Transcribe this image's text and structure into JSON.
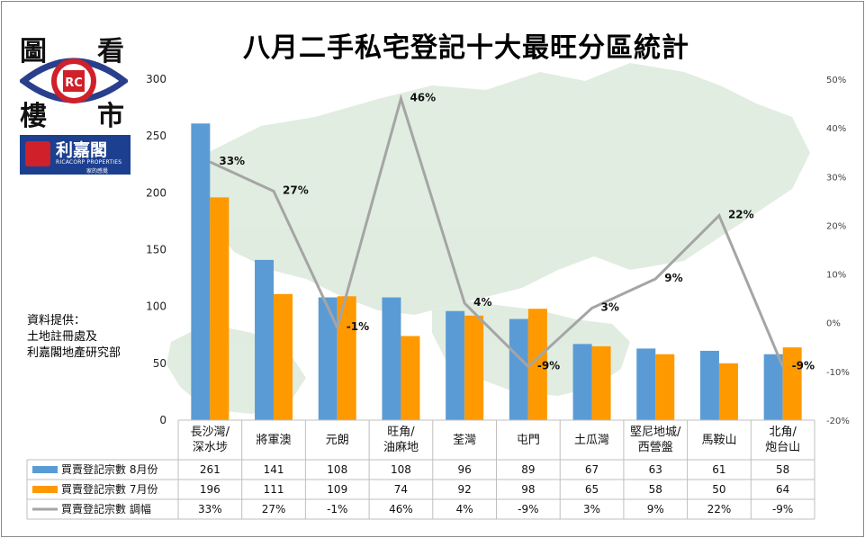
{
  "logo": {
    "chars": [
      "圖",
      "看",
      "樓",
      "市"
    ],
    "emblem_text": "RC"
  },
  "brand": {
    "name": "利嘉閣",
    "sub_en": "RICACORP PROPERTIES",
    "sub_zh": "家的感覺"
  },
  "source_note": {
    "line1": "資料提供：",
    "line2": "土地註冊處及",
    "line3": "利嘉閣地產研究部"
  },
  "colors": {
    "aug": "#5b9bd5",
    "jul": "#ff9900",
    "change": "#a5a5a5",
    "map": "#c9dec9"
  },
  "chart_data": {
    "type": "bar",
    "title": "八月二手私宅登記十大最旺分區統計",
    "categories": [
      "長沙灣/深水埗",
      "將軍澳",
      "元朗",
      "旺角/油麻地",
      "荃灣",
      "屯門",
      "土瓜灣",
      "堅尼地城/西營盤",
      "馬鞍山",
      "北角/炮台山"
    ],
    "category_lines": [
      [
        "長沙灣/",
        "深水埗"
      ],
      [
        "將軍澳"
      ],
      [
        "元朗"
      ],
      [
        "旺角/",
        "油麻地"
      ],
      [
        "荃灣"
      ],
      [
        "屯門"
      ],
      [
        "土瓜灣"
      ],
      [
        "堅尼地城/",
        "西營盤"
      ],
      [
        "馬鞍山"
      ],
      [
        "北角/",
        "炮台山"
      ]
    ],
    "series": [
      {
        "name": "買賣登記宗數 8月份",
        "type": "bar",
        "axis": "left",
        "values": [
          261,
          141,
          108,
          108,
          96,
          89,
          67,
          63,
          61,
          58
        ]
      },
      {
        "name": "買賣登記宗數 7月份",
        "type": "bar",
        "axis": "left",
        "values": [
          196,
          111,
          109,
          74,
          92,
          98,
          65,
          58,
          50,
          64
        ]
      },
      {
        "name": "買賣登記宗數 調幅",
        "type": "line",
        "axis": "right",
        "values": [
          33,
          27,
          -1,
          46,
          4,
          -9,
          3,
          9,
          22,
          -9
        ],
        "labels": [
          "33%",
          "27%",
          "-1%",
          "46%",
          "4%",
          "-9%",
          "3%",
          "9%",
          "22%",
          "-9%"
        ]
      }
    ],
    "table_rows": [
      [
        "261",
        "141",
        "108",
        "108",
        "96",
        "89",
        "67",
        "63",
        "61",
        "58"
      ],
      [
        "196",
        "111",
        "109",
        "74",
        "92",
        "98",
        "65",
        "58",
        "50",
        "64"
      ],
      [
        "33%",
        "27%",
        "-1%",
        "46%",
        "4%",
        "-9%",
        "3%",
        "9%",
        "22%",
        "-9%"
      ]
    ],
    "y_left": {
      "ticks": [
        "0",
        "50",
        "100",
        "150",
        "200",
        "250",
        "300"
      ],
      "range": [
        0,
        300
      ]
    },
    "y_right": {
      "ticks": [
        "-20%",
        "-10%",
        "0%",
        "10%",
        "20%",
        "30%",
        "40%",
        "50%"
      ],
      "range": [
        -20,
        50
      ]
    },
    "grid": false,
    "legend": "data-table"
  }
}
